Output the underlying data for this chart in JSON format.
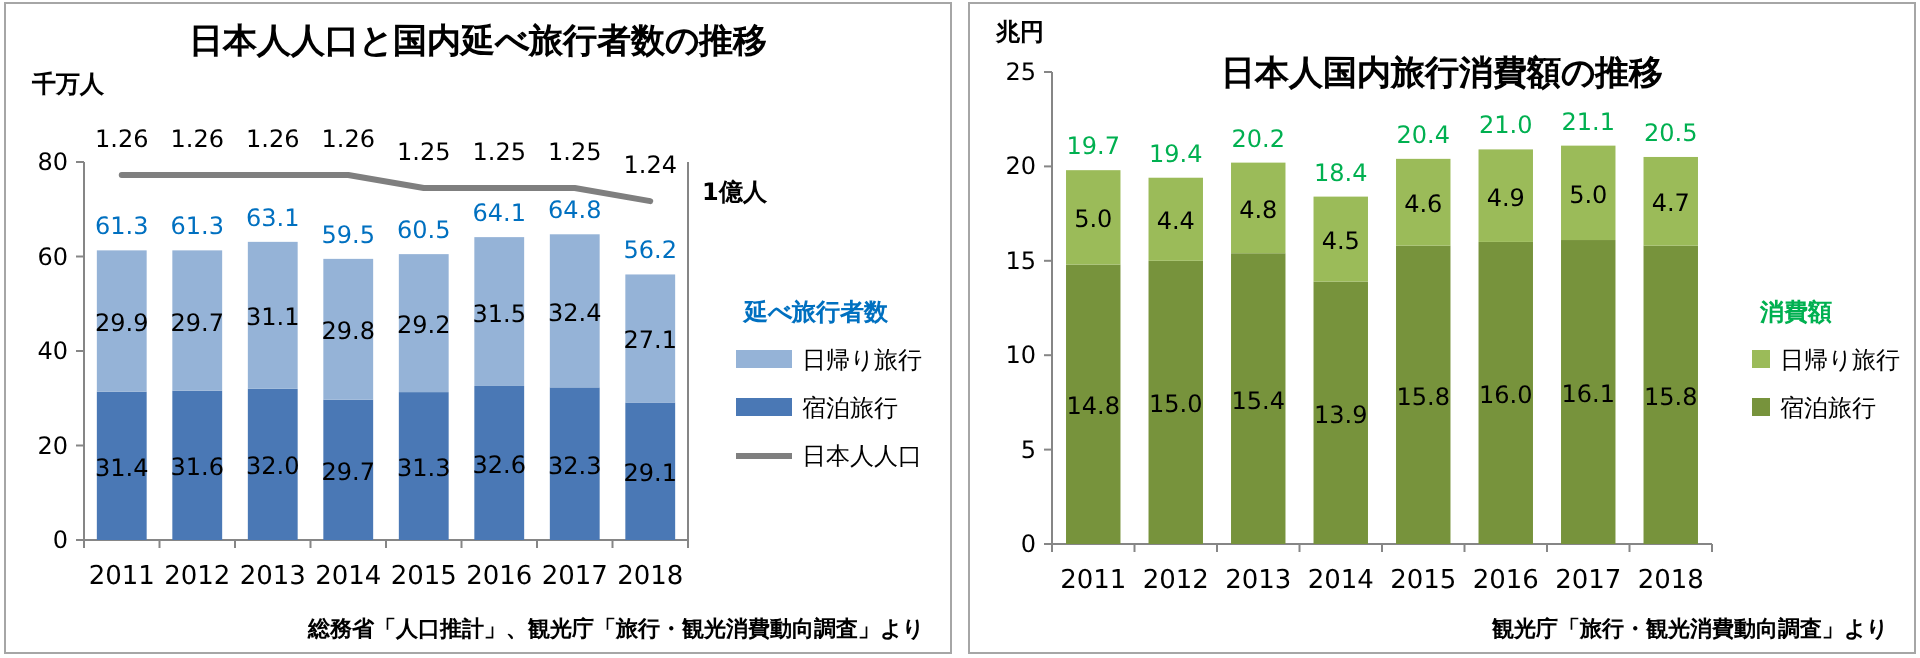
{
  "chart_data": [
    {
      "type": "bar",
      "title": "日本人人口と国内延べ旅行者数の推移",
      "ylabel": "千万人",
      "y2label": "1億人",
      "legend_title": "延べ旅行者数",
      "legend": "right",
      "stacked": true,
      "data_labels": true,
      "categories": [
        "2011",
        "2012",
        "2013",
        "2014",
        "2015",
        "2016",
        "2017",
        "2018"
      ],
      "ylim": [
        0,
        80
      ],
      "yticks": [
        0,
        20,
        40,
        60,
        80
      ],
      "y2lim": [
        0.98,
        1.27
      ],
      "series": [
        {
          "name": "宿泊旅行",
          "color": "#4a78b5",
          "values": [
            31.4,
            31.6,
            32.0,
            29.7,
            31.3,
            32.6,
            32.3,
            29.1
          ],
          "value_labels": [
            "31.4",
            "31.6",
            "32.0",
            "29.7",
            "31.3",
            "32.6",
            "32.3",
            "29.1"
          ]
        },
        {
          "name": "日帰り旅行",
          "color": "#95b3d7",
          "values": [
            29.9,
            29.7,
            31.1,
            29.8,
            29.2,
            31.5,
            32.4,
            27.1
          ]
        },
        {
          "name": "日本人人口",
          "type": "line",
          "axis": "y2",
          "color": "#7f7f7f",
          "values": [
            1.26,
            1.26,
            1.26,
            1.26,
            1.25,
            1.25,
            1.25,
            1.24
          ]
        }
      ],
      "totals": [
        "61.3",
        "61.3",
        "63.1",
        "59.5",
        "60.5",
        "64.1",
        "64.8",
        "56.2"
      ],
      "annotations": [
        "総務省「人口推計」、観光庁「旅行・観光消費動向調査」より"
      ]
    },
    {
      "type": "bar",
      "title": "日本人国内旅行消費額の推移",
      "ylabel": "兆円",
      "legend_title": "消費額",
      "legend": "right",
      "stacked": true,
      "categories": [
        "2011",
        "2012",
        "2013",
        "2014",
        "2015",
        "2016",
        "2017",
        "2018"
      ],
      "ylim": [
        0,
        25
      ],
      "yticks": [
        0,
        5,
        10,
        15,
        20,
        25
      ],
      "series": [
        {
          "name": "宿泊旅行",
          "color": "#77933c",
          "values": [
            14.8,
            15.0,
            15.4,
            13.9,
            15.8,
            16.0,
            16.1,
            15.8
          ],
          "value_labels": [
            "14.8",
            "15.0",
            "15.4",
            "13.9",
            "15.8",
            "16.0",
            "16.1",
            "15.8"
          ]
        },
        {
          "name": "日帰り旅行",
          "color": "#9bbb59",
          "values": [
            5.0,
            4.4,
            4.8,
            4.5,
            4.6,
            4.9,
            5.0,
            4.7
          ],
          "value_labels": [
            "5.0",
            "4.4",
            "4.8",
            "4.5",
            "4.6",
            "4.9",
            "5.0",
            "4.7"
          ]
        }
      ],
      "totals": [
        "19.7",
        "19.4",
        "20.2",
        "18.4",
        "20.4",
        "21.0",
        "21.1",
        "20.5"
      ],
      "annotations": [
        "観光庁「旅行・観光消費動向調査」より"
      ]
    }
  ]
}
